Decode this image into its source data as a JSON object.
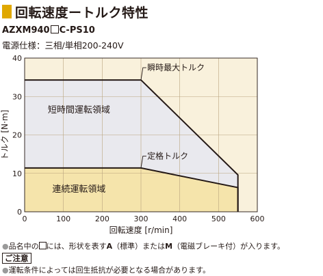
{
  "title": "回転速度ートルク特性",
  "model": {
    "prefix": "AZXM940",
    "suffix": "C-PS10"
  },
  "spec": "電源仕様：三相/単相200-240V",
  "chart_data": {
    "type": "area",
    "xlabel": "回転速度 [r/min]",
    "ylabel": "トルク [N·m]",
    "xlim": [
      0,
      600
    ],
    "ylim": [
      0,
      40
    ],
    "xticks": [
      0,
      100,
      200,
      300,
      400,
      500,
      600
    ],
    "yticks": [
      0,
      10,
      20,
      30,
      40
    ],
    "grid": true,
    "series": [
      {
        "name": "瞬時最大トルク",
        "x": [
          0,
          300,
          550,
          550
        ],
        "y": [
          34.3,
          34.3,
          9.6,
          0
        ]
      },
      {
        "name": "定格トルク",
        "x": [
          0,
          300,
          550,
          550
        ],
        "y": [
          11.4,
          11.4,
          6.3,
          0
        ]
      }
    ],
    "regions": {
      "short": "短時間運転領域",
      "continuous": "連続運転領域"
    }
  },
  "notes": {
    "n1_pre": "品名中の",
    "n1_mid": "には、形状を表す",
    "n1_a": "A",
    "n1_a_desc": "（標準）または",
    "n1_m": "M",
    "n1_post": "（電磁ブレーキ付）が入ります。",
    "caution": "ご注意",
    "n2": "運転条件によっては回生抵抗が必要となる場合があります。"
  },
  "colors": {
    "accent": "#e0a800",
    "short_region": "#e9e9ee",
    "continuous_region": "#f5e4ab",
    "background": "#f9f1dc",
    "grid": "#b9a37e",
    "line": "#231815",
    "bullet": "#9a9a9a"
  }
}
